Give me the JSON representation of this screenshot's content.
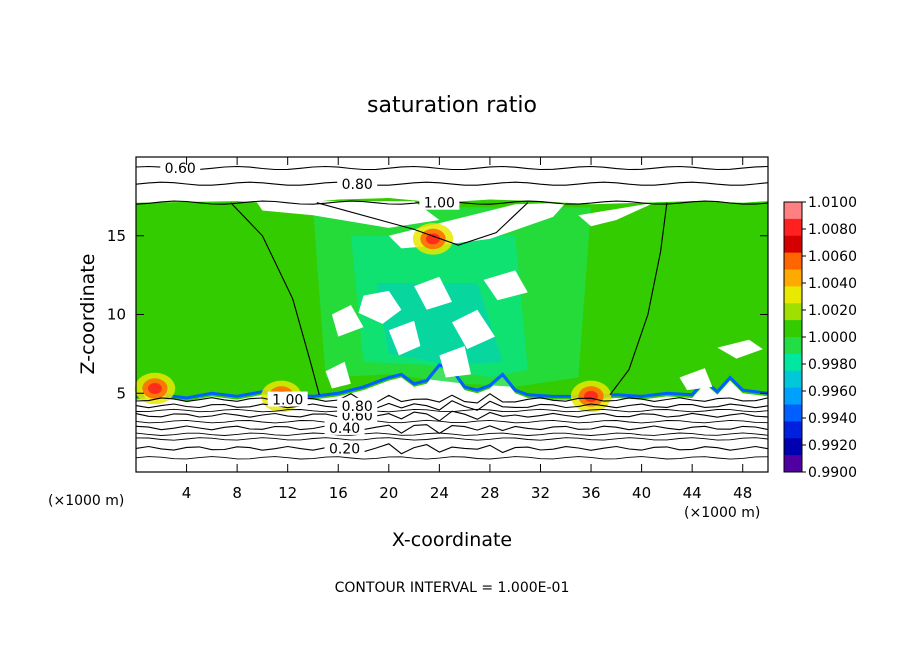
{
  "chart_data": {
    "type": "heatmap",
    "title": "saturation ratio",
    "xlabel": "X-coordinate",
    "ylabel": "Z-coordinate",
    "x_unit": "(×1000 m)",
    "y_unit": "(×1000 m)",
    "xlim": [
      0,
      50
    ],
    "ylim": [
      0,
      20
    ],
    "x_ticks": [
      4,
      8,
      12,
      16,
      20,
      24,
      28,
      32,
      36,
      40,
      44,
      48
    ],
    "y_ticks": [
      5,
      10,
      15
    ],
    "footer": "CONTOUR INTERVAL = 1.000E-01",
    "colorbar": {
      "labels": [
        "1.0100",
        "1.0080",
        "1.0060",
        "1.0040",
        "1.0020",
        "1.0000",
        "0.9980",
        "0.9960",
        "0.9940",
        "0.9920",
        "0.9900"
      ],
      "colors": [
        "#ff8080",
        "#ff2020",
        "#d40000",
        "#ff6600",
        "#ffaa00",
        "#e8e800",
        "#a0e000",
        "#33cc00",
        "#22dd44",
        "#00e8a0",
        "#00c8d8",
        "#00a0ff",
        "#0060ff",
        "#0020e0",
        "#0000b0",
        "#5000a0"
      ]
    },
    "contours": [
      {
        "label": "0.20",
        "z": 1.5
      },
      {
        "label": "0.40",
        "z": 2.8
      },
      {
        "label": "0.60",
        "z": 3.6
      },
      {
        "label": "0.80",
        "z": 4.2
      },
      {
        "label": "1.00",
        "z": 4.6
      },
      {
        "label": "1.00",
        "z": 17.1
      },
      {
        "label": "0.80",
        "z": 18.3
      },
      {
        "label": "0.60",
        "z": 19.3
      }
    ],
    "supersaturated_spots": [
      {
        "x": 1.5,
        "z": 5.3
      },
      {
        "x": 11.5,
        "z": 4.8
      },
      {
        "x": 23.5,
        "z": 14.8
      },
      {
        "x": 36,
        "z": 4.8
      }
    ]
  }
}
